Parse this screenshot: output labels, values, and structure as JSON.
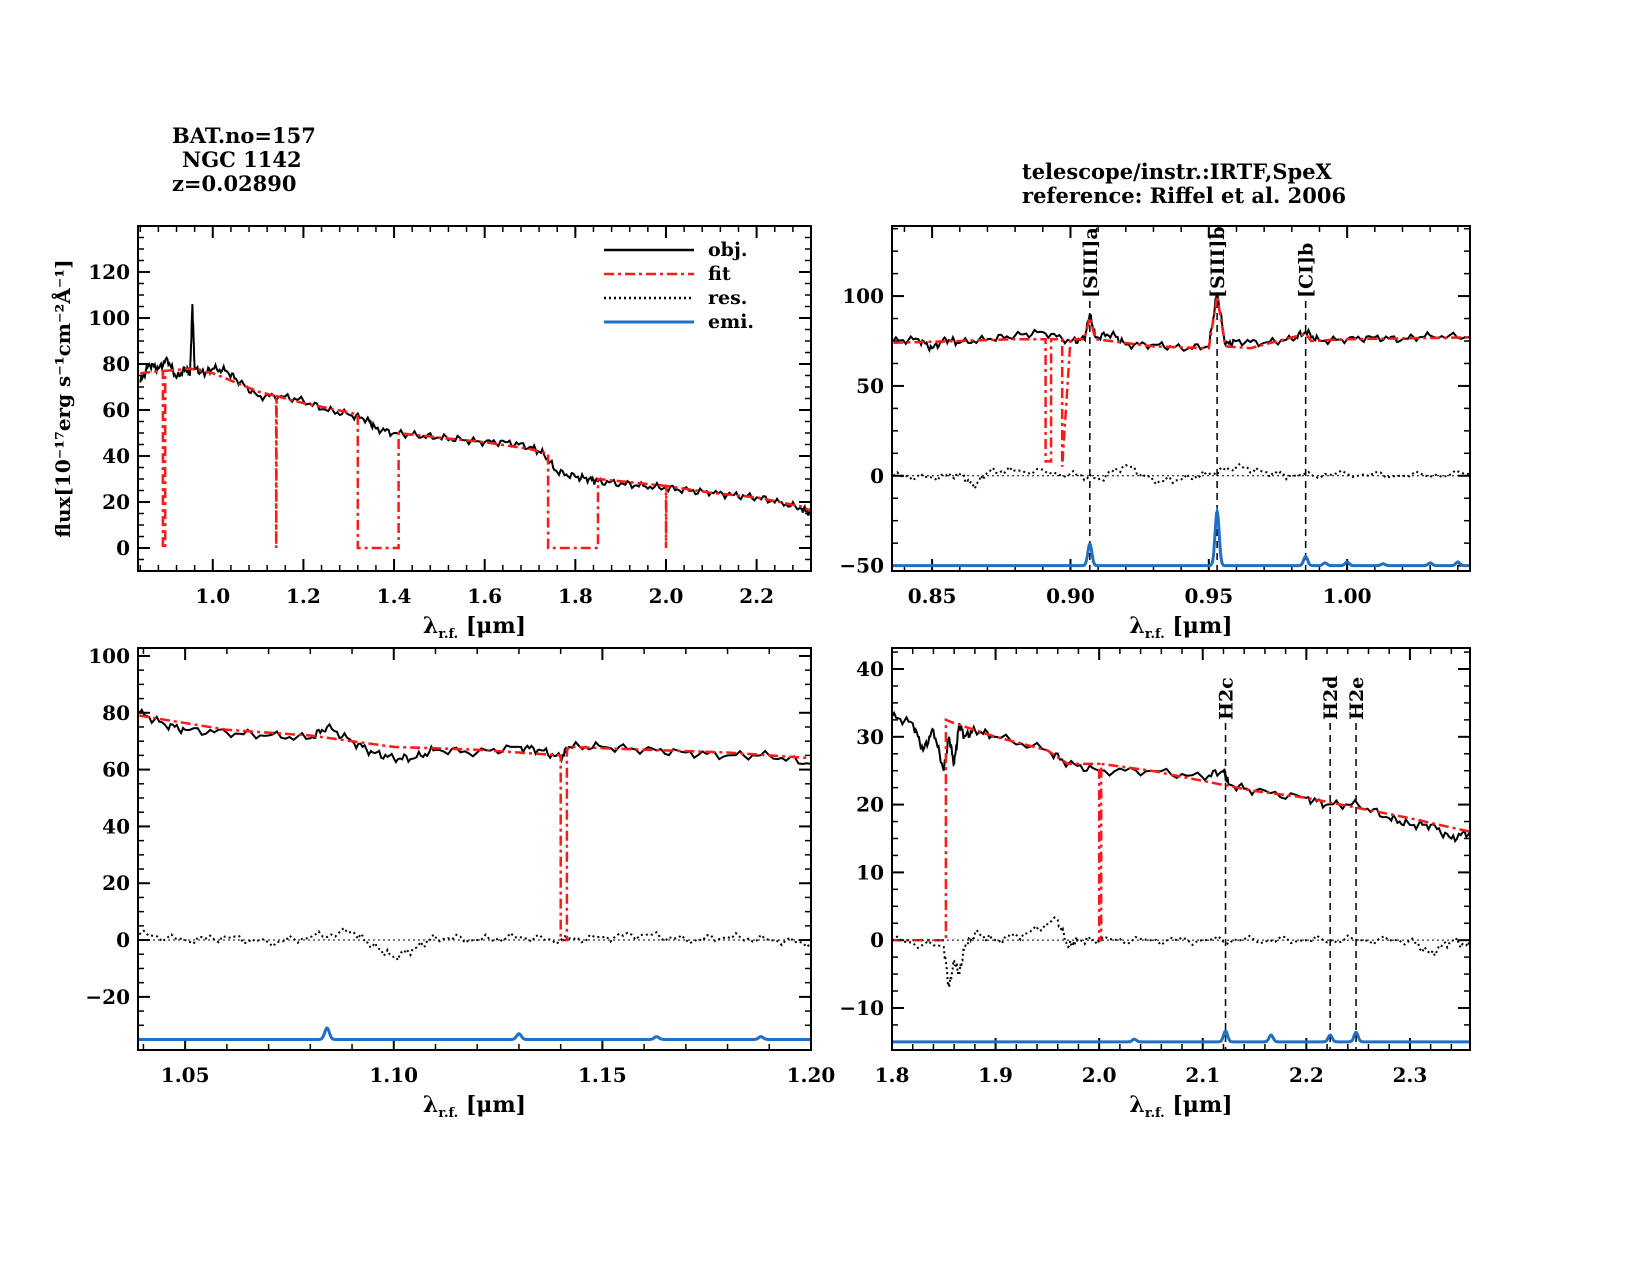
{
  "header": {
    "bat_no": "BAT.no=157",
    "object": "NGC 1142",
    "redshift": "z=0.02890",
    "instrument": "telescope/instr.:IRTF,SpeX",
    "reference": "reference: Riffel et al. 2006"
  },
  "colors": {
    "obj": "#000000",
    "fit": "#ff1a1a",
    "res": "#000000",
    "emi": "#1f6fc4"
  },
  "chart_data": [
    {
      "type": "line",
      "xlabel": "λr.f. [μm]",
      "ylabel": "flux[10⁻¹⁷erg s⁻¹cm⁻²Å⁻¹]",
      "xlim": [
        0.835,
        2.32
      ],
      "ylim": [
        -10,
        140
      ],
      "xticks": [
        1.0,
        1.2,
        1.4,
        1.6,
        1.8,
        2.0,
        2.2
      ],
      "xticklabels": [
        "1.0",
        "1.2",
        "1.4",
        "1.6",
        "1.8",
        "2.0",
        "2.2"
      ],
      "yticks": [
        0,
        20,
        40,
        60,
        80,
        100,
        120
      ],
      "yticklabels": [
        "0",
        "20",
        "40",
        "60",
        "80",
        "100",
        "120"
      ],
      "legend": {
        "position": "top-right",
        "entries": [
          "obj.",
          "fit",
          "res.",
          "emi."
        ]
      },
      "series": [
        {
          "name": "obj.",
          "style": "solid",
          "x": [
            0.84,
            0.86,
            0.88,
            0.9,
            0.92,
            0.94,
            0.95,
            0.955,
            0.96,
            0.98,
            1.0,
            1.03,
            1.06,
            1.1,
            1.15,
            1.2,
            1.25,
            1.3,
            1.34,
            1.36,
            1.4,
            1.45,
            1.5,
            1.55,
            1.6,
            1.65,
            1.7,
            1.73,
            1.76,
            1.8,
            1.83,
            1.85,
            1.9,
            1.95,
            2.0,
            2.05,
            2.1,
            2.15,
            2.2,
            2.25,
            2.3,
            2.32
          ],
          "y": [
            72,
            80,
            78,
            82,
            74,
            78,
            76,
            106,
            78,
            76,
            78,
            77,
            72,
            66,
            66,
            64,
            60,
            58,
            56,
            52,
            50,
            49,
            48,
            47,
            46,
            46,
            44,
            41,
            33,
            31,
            30,
            29,
            28,
            27,
            26,
            25,
            24,
            23,
            22,
            20,
            17,
            15
          ]
        },
        {
          "name": "fit",
          "style": "dashdot",
          "x": [
            0.84,
            0.89,
            0.89,
            0.895,
            0.895,
            0.95,
            1.0,
            1.05,
            1.1,
            1.14,
            1.14,
            1.141,
            1.2,
            1.3,
            1.32,
            1.32,
            1.41,
            1.41,
            1.5,
            1.6,
            1.7,
            1.74,
            1.74,
            1.85,
            1.85,
            1.9,
            2.0,
            2.0,
            2.001,
            2.1,
            2.2,
            2.3,
            2.32
          ],
          "y": [
            76,
            77,
            0,
            0,
            77,
            78,
            76,
            72,
            68,
            66,
            0,
            66,
            63,
            59,
            58,
            0,
            0,
            50,
            48,
            46,
            43,
            41,
            0,
            0,
            30,
            29,
            27,
            0,
            27,
            24,
            22,
            18,
            16
          ]
        }
      ]
    },
    {
      "type": "line",
      "xlabel": "λr.f. [μm]",
      "xlim": [
        0.8355,
        1.0444
      ],
      "ylim": [
        -53,
        139
      ],
      "xticks": [
        0.85,
        0.9,
        0.95,
        1.0
      ],
      "xticklabels": [
        "0.85",
        "0.90",
        "0.95",
        "1.00"
      ],
      "yticks": [
        -50,
        0,
        50,
        100
      ],
      "yticklabels": [
        "−50",
        "0",
        "50",
        "100"
      ],
      "line_markers": [
        {
          "label": "[SIII]a",
          "x": 0.907
        },
        {
          "label": "[SIII]b",
          "x": 0.953
        },
        {
          "label": "[CI]b",
          "x": 0.985
        }
      ],
      "series": [
        {
          "name": "obj.",
          "style": "solid",
          "x": [
            0.836,
            0.845,
            0.85,
            0.855,
            0.86,
            0.87,
            0.88,
            0.89,
            0.9,
            0.905,
            0.907,
            0.909,
            0.915,
            0.92,
            0.93,
            0.94,
            0.95,
            0.953,
            0.956,
            0.96,
            0.97,
            0.98,
            0.985,
            0.99,
            1.0,
            1.01,
            1.02,
            1.03,
            1.044
          ],
          "y": [
            75,
            76,
            71,
            76,
            74,
            76,
            78,
            80,
            75,
            76,
            90,
            77,
            79,
            73,
            73,
            71,
            72,
            102,
            73,
            75,
            74,
            76,
            80,
            75,
            76,
            77,
            76,
            78,
            77
          ]
        },
        {
          "name": "fit",
          "style": "dashdot",
          "x": [
            0.836,
            0.86,
            0.88,
            0.891,
            0.891,
            0.893,
            0.893,
            0.897,
            0.897,
            0.9,
            0.905,
            0.907,
            0.909,
            0.93,
            0.95,
            0.953,
            0.956,
            0.965,
            0.985,
            0.987,
            1.0,
            1.044
          ],
          "y": [
            74,
            75,
            76,
            76,
            8,
            8,
            76,
            76,
            5,
            76,
            76,
            88,
            76,
            72,
            71,
            100,
            72,
            71,
            79,
            75,
            76,
            77
          ]
        },
        {
          "name": "res.",
          "style": "dotted",
          "x": [
            0.836,
            0.85,
            0.86,
            0.865,
            0.87,
            0.88,
            0.9,
            0.91,
            0.92,
            0.93,
            0.94,
            0.95,
            0.96,
            0.97,
            0.98,
            1.0,
            1.02,
            1.044
          ],
          "y": [
            0,
            -1,
            1,
            -6,
            2,
            3,
            1,
            -2,
            6,
            -3,
            -2,
            1,
            5,
            2,
            0,
            1,
            0,
            1
          ]
        },
        {
          "name": "emi.",
          "style": "solid",
          "baseline": -50,
          "lines": [
            {
              "x": 0.907,
              "amp": 12
            },
            {
              "x": 0.953,
              "amp": 30
            },
            {
              "x": 0.985,
              "amp": 5
            },
            {
              "x": 0.992,
              "amp": 1.5
            },
            {
              "x": 1.0,
              "amp": 2
            },
            {
              "x": 1.013,
              "amp": 1
            },
            {
              "x": 1.03,
              "amp": 1.5
            },
            {
              "x": 1.04,
              "amp": 2
            }
          ]
        }
      ]
    },
    {
      "type": "line",
      "xlabel": "λr.f. [μm]",
      "xlim": [
        1.0387,
        1.2
      ],
      "ylim": [
        -38.7,
        102.8
      ],
      "xticks": [
        1.05,
        1.1,
        1.15,
        1.2
      ],
      "xticklabels": [
        "1.05",
        "1.10",
        "1.15",
        "1.20"
      ],
      "yticks": [
        -20,
        0,
        20,
        40,
        60,
        80,
        100
      ],
      "yticklabels": [
        "−20",
        "0",
        "20",
        "40",
        "60",
        "80",
        "100"
      ],
      "series": [
        {
          "name": "obj.",
          "style": "solid",
          "x": [
            1.039,
            1.045,
            1.05,
            1.06,
            1.07,
            1.08,
            1.084,
            1.09,
            1.095,
            1.1,
            1.105,
            1.11,
            1.12,
            1.13,
            1.135,
            1.14,
            1.142,
            1.15,
            1.16,
            1.17,
            1.18,
            1.19,
            1.2
          ],
          "y": [
            80,
            76,
            74,
            73,
            72,
            71,
            75,
            70,
            66,
            64,
            64,
            67,
            66,
            68,
            67,
            64,
            68,
            68,
            67,
            66,
            65,
            65,
            62
          ]
        },
        {
          "name": "fit",
          "style": "dashdot",
          "x": [
            1.039,
            1.06,
            1.08,
            1.1,
            1.12,
            1.14,
            1.14,
            1.1415,
            1.1415,
            1.142,
            1.16,
            1.18,
            1.2
          ],
          "y": [
            79,
            74,
            72,
            68,
            67,
            65,
            0,
            0,
            67,
            68,
            67,
            66,
            64
          ]
        },
        {
          "name": "res.",
          "style": "dotted",
          "x": [
            1.039,
            1.05,
            1.06,
            1.07,
            1.08,
            1.09,
            1.095,
            1.1,
            1.105,
            1.11,
            1.12,
            1.13,
            1.14,
            1.15,
            1.16,
            1.17,
            1.18,
            1.19,
            1.2
          ],
          "y": [
            2,
            0,
            1,
            -1,
            1,
            3,
            -2,
            -6,
            -3,
            1,
            0,
            1,
            0,
            1,
            2,
            0,
            1,
            0,
            -1
          ]
        },
        {
          "name": "emi.",
          "style": "solid",
          "baseline": -35,
          "lines": [
            {
              "x": 1.084,
              "amp": 4
            },
            {
              "x": 1.13,
              "amp": 2
            },
            {
              "x": 1.163,
              "amp": 1
            },
            {
              "x": 1.188,
              "amp": 1
            }
          ]
        }
      ]
    },
    {
      "type": "line",
      "xlabel": "λr.f. [μm]",
      "xlim": [
        1.8,
        2.358
      ],
      "ylim": [
        -16.2,
        43.1
      ],
      "xticks": [
        1.8,
        1.9,
        2.0,
        2.1,
        2.2,
        2.3
      ],
      "xticklabels": [
        "1.8",
        "1.9",
        "2.0",
        "2.1",
        "2.2",
        "2.3"
      ],
      "yticks": [
        -10,
        0,
        10,
        20,
        30,
        40
      ],
      "yticklabels": [
        "−10",
        "0",
        "10",
        "20",
        "30",
        "40"
      ],
      "line_markers": [
        {
          "label": "H2c",
          "x": 2.122
        },
        {
          "label": "H2d",
          "x": 2.223
        },
        {
          "label": "H2e",
          "x": 2.248
        }
      ],
      "series": [
        {
          "name": "obj.",
          "style": "solid",
          "x": [
            1.8,
            1.82,
            1.83,
            1.84,
            1.85,
            1.855,
            1.86,
            1.865,
            1.87,
            1.88,
            1.9,
            1.95,
            1.97,
            2.0,
            2.05,
            2.1,
            2.12,
            2.125,
            2.15,
            2.2,
            2.22,
            2.25,
            2.28,
            2.3,
            2.32,
            2.34,
            2.358
          ],
          "y": [
            33,
            32,
            28,
            31,
            25,
            30,
            26,
            32,
            30,
            31,
            30,
            28,
            26,
            25,
            25,
            24,
            25,
            23,
            22,
            21,
            20,
            20,
            18,
            17,
            17,
            15,
            16
          ]
        },
        {
          "name": "fit",
          "style": "dashdot",
          "x": [
            1.8,
            1.852,
            1.852,
            1.86,
            1.9,
            1.95,
            1.97,
            2.0,
            2.0,
            2.002,
            2.002,
            2.05,
            2.1,
            2.15,
            2.2,
            2.25,
            2.3,
            2.358
          ],
          "y": [
            0,
            0,
            32.5,
            32,
            30,
            28,
            26,
            26,
            0,
            0,
            26,
            25,
            23.5,
            22,
            21,
            19.5,
            18,
            16
          ]
        },
        {
          "name": "res.",
          "style": "dotted",
          "x": [
            1.8,
            1.85,
            1.855,
            1.86,
            1.865,
            1.87,
            1.88,
            1.9,
            1.93,
            1.96,
            1.97,
            1.98,
            2.0,
            2.05,
            2.1,
            2.15,
            2.2,
            2.25,
            2.3,
            2.32,
            2.34,
            2.358
          ],
          "y": [
            0,
            -1,
            -7,
            -3,
            -5,
            -1,
            1,
            0,
            1,
            3,
            -1,
            0,
            0,
            0,
            0,
            0,
            0,
            0,
            0,
            -2,
            0,
            -1
          ]
        },
        {
          "name": "emi.",
          "style": "solid",
          "baseline": -15,
          "lines": [
            {
              "x": 2.034,
              "amp": 0.4
            },
            {
              "x": 2.122,
              "amp": 1.6
            },
            {
              "x": 2.166,
              "amp": 1
            },
            {
              "x": 2.223,
              "amp": 1
            },
            {
              "x": 2.248,
              "amp": 1.4
            }
          ]
        }
      ]
    }
  ]
}
